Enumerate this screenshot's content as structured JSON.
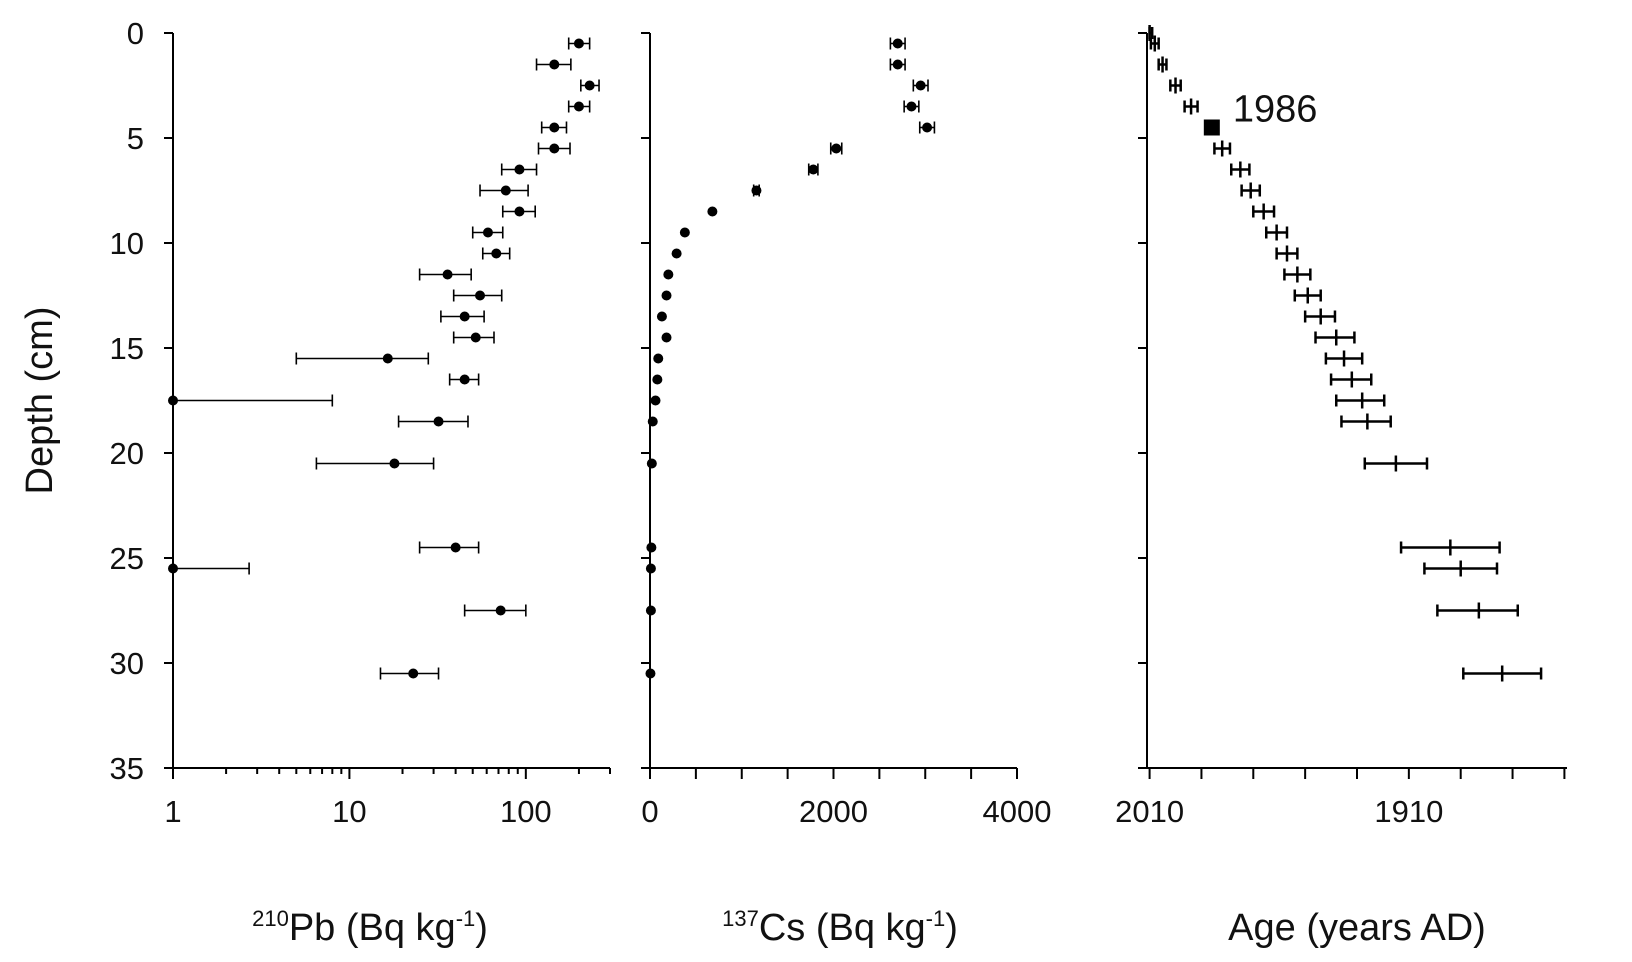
{
  "y_axis": {
    "title": "Depth (cm)",
    "ticks": [
      0,
      5,
      10,
      15,
      20,
      25,
      30,
      35
    ]
  },
  "panels": [
    {
      "id": "pb210",
      "title": {
        "sup": "210",
        "main": "Pb (Bq kg",
        "sup2": "-1",
        "end": ")"
      },
      "tick_labels": [
        "1",
        "10",
        "100"
      ]
    },
    {
      "id": "cs137",
      "title": {
        "sup": "137",
        "main": "Cs (Bq kg",
        "sup2": "-1",
        "end": ")"
      },
      "tick_labels": [
        "0",
        "2000",
        "4000"
      ]
    },
    {
      "id": "age",
      "title": {
        "main": "Age (years AD)"
      },
      "tick_labels": [
        "2010",
        "1910"
      ]
    }
  ],
  "chart_data": [
    {
      "type": "scatter",
      "panel": "pb210",
      "x_scale": "log",
      "xlim": [
        1,
        300
      ],
      "ylim": [
        0,
        35
      ],
      "y_inverted": true,
      "x_ticks": [
        1,
        10,
        100
      ],
      "error_bars": "horizontal",
      "points": [
        {
          "depth": 0.5,
          "x": 200,
          "lo": 175,
          "hi": 230
        },
        {
          "depth": 1.5,
          "x": 145,
          "lo": 115,
          "hi": 180
        },
        {
          "depth": 2.5,
          "x": 230,
          "lo": 205,
          "hi": 260
        },
        {
          "depth": 3.5,
          "x": 200,
          "lo": 175,
          "hi": 230
        },
        {
          "depth": 4.5,
          "x": 145,
          "lo": 123,
          "hi": 170
        },
        {
          "depth": 5.5,
          "x": 145,
          "lo": 118,
          "hi": 178
        },
        {
          "depth": 6.5,
          "x": 92,
          "lo": 73,
          "hi": 115
        },
        {
          "depth": 7.5,
          "x": 77,
          "lo": 55,
          "hi": 103
        },
        {
          "depth": 8.5,
          "x": 92,
          "lo": 74,
          "hi": 113
        },
        {
          "depth": 9.5,
          "x": 61,
          "lo": 50,
          "hi": 74
        },
        {
          "depth": 10.5,
          "x": 68,
          "lo": 57,
          "hi": 81
        },
        {
          "depth": 11.5,
          "x": 36,
          "lo": 25,
          "hi": 49
        },
        {
          "depth": 12.5,
          "x": 55,
          "lo": 39,
          "hi": 73
        },
        {
          "depth": 13.5,
          "x": 45,
          "lo": 33,
          "hi": 58
        },
        {
          "depth": 14.5,
          "x": 52,
          "lo": 39,
          "hi": 66
        },
        {
          "depth": 15.5,
          "x": 16.5,
          "lo": 5,
          "hi": 28
        },
        {
          "depth": 16.5,
          "x": 45,
          "lo": 37,
          "hi": 54
        },
        {
          "depth": 17.5,
          "x": 1,
          "lo": 1,
          "hi": 8
        },
        {
          "depth": 18.5,
          "x": 32,
          "lo": 19,
          "hi": 47
        },
        {
          "depth": 20.5,
          "x": 18,
          "lo": 6.5,
          "hi": 30
        },
        {
          "depth": 24.5,
          "x": 40,
          "lo": 25,
          "hi": 54
        },
        {
          "depth": 25.5,
          "x": 1,
          "lo": 1,
          "hi": 2.7
        },
        {
          "depth": 27.5,
          "x": 72,
          "lo": 45,
          "hi": 100
        },
        {
          "depth": 30.5,
          "x": 23,
          "lo": 15,
          "hi": 32
        }
      ]
    },
    {
      "type": "scatter",
      "panel": "cs137",
      "x_scale": "linear",
      "xlim": [
        0,
        4000
      ],
      "ylim": [
        0,
        35
      ],
      "y_inverted": true,
      "x_ticks": [
        0,
        2000,
        4000
      ],
      "error_bars": "horizontal",
      "points": [
        {
          "depth": 0.5,
          "x": 2700,
          "lo": 2620,
          "hi": 2780
        },
        {
          "depth": 1.5,
          "x": 2700,
          "lo": 2620,
          "hi": 2780
        },
        {
          "depth": 2.5,
          "x": 2950,
          "lo": 2870,
          "hi": 3030
        },
        {
          "depth": 3.5,
          "x": 2850,
          "lo": 2770,
          "hi": 2930
        },
        {
          "depth": 4.5,
          "x": 3020,
          "lo": 2940,
          "hi": 3100
        },
        {
          "depth": 5.5,
          "x": 2030,
          "lo": 1970,
          "hi": 2090
        },
        {
          "depth": 6.5,
          "x": 1780,
          "lo": 1730,
          "hi": 1830
        },
        {
          "depth": 7.5,
          "x": 1160,
          "lo": 1130,
          "hi": 1190
        },
        {
          "depth": 8.5,
          "x": 680
        },
        {
          "depth": 9.5,
          "x": 380
        },
        {
          "depth": 10.5,
          "x": 290
        },
        {
          "depth": 11.5,
          "x": 200
        },
        {
          "depth": 12.5,
          "x": 180
        },
        {
          "depth": 13.5,
          "x": 130
        },
        {
          "depth": 14.5,
          "x": 180
        },
        {
          "depth": 15.5,
          "x": 90
        },
        {
          "depth": 16.5,
          "x": 80
        },
        {
          "depth": 17.5,
          "x": 60
        },
        {
          "depth": 18.5,
          "x": 30
        },
        {
          "depth": 20.5,
          "x": 20
        },
        {
          "depth": 24.5,
          "x": 15
        },
        {
          "depth": 25.5,
          "x": 10
        },
        {
          "depth": 27.5,
          "x": 10
        },
        {
          "depth": 30.5,
          "x": 5
        }
      ]
    },
    {
      "type": "scatter",
      "panel": "age",
      "x_scale": "linear",
      "x_reversed": true,
      "xlim": [
        2011,
        1849
      ],
      "ylim": [
        0,
        35
      ],
      "y_inverted": true,
      "x_ticks": [
        2010,
        1910
      ],
      "error_bars": "horizontal",
      "points": [
        {
          "depth": 0,
          "x": 2010,
          "lo": 2009,
          "hi": 2010
        },
        {
          "depth": 0.5,
          "x": 2008,
          "lo": 2006.5,
          "hi": 2009.5
        },
        {
          "depth": 1.5,
          "x": 2005,
          "lo": 2003.5,
          "hi": 2006.5
        },
        {
          "depth": 2.5,
          "x": 2000,
          "lo": 1998,
          "hi": 2002
        },
        {
          "depth": 3.5,
          "x": 1994,
          "lo": 1991.5,
          "hi": 1996.5
        },
        {
          "depth": 5.5,
          "x": 1982,
          "lo": 1979,
          "hi": 1985
        },
        {
          "depth": 6.5,
          "x": 1975,
          "lo": 1971.5,
          "hi": 1978.5
        },
        {
          "depth": 7.5,
          "x": 1971,
          "lo": 1967.5,
          "hi": 1974.5
        },
        {
          "depth": 8.5,
          "x": 1966,
          "lo": 1962,
          "hi": 1970
        },
        {
          "depth": 9.5,
          "x": 1961,
          "lo": 1957,
          "hi": 1965
        },
        {
          "depth": 10.5,
          "x": 1957,
          "lo": 1953,
          "hi": 1961
        },
        {
          "depth": 11.5,
          "x": 1953,
          "lo": 1948,
          "hi": 1958
        },
        {
          "depth": 12.5,
          "x": 1949,
          "lo": 1944,
          "hi": 1954
        },
        {
          "depth": 13.5,
          "x": 1944,
          "lo": 1938.5,
          "hi": 1950
        },
        {
          "depth": 14.5,
          "x": 1938,
          "lo": 1931,
          "hi": 1946
        },
        {
          "depth": 15.5,
          "x": 1935,
          "lo": 1928,
          "hi": 1942
        },
        {
          "depth": 16.5,
          "x": 1932,
          "lo": 1924.5,
          "hi": 1940
        },
        {
          "depth": 17.5,
          "x": 1928,
          "lo": 1919.5,
          "hi": 1938
        },
        {
          "depth": 18.5,
          "x": 1926,
          "lo": 1917,
          "hi": 1936
        },
        {
          "depth": 20.5,
          "x": 1915,
          "lo": 1903,
          "hi": 1927
        },
        {
          "depth": 24.5,
          "x": 1894,
          "lo": 1875,
          "hi": 1913
        },
        {
          "depth": 25.5,
          "x": 1890,
          "lo": 1876,
          "hi": 1904
        },
        {
          "depth": 27.5,
          "x": 1883,
          "lo": 1868,
          "hi": 1899
        },
        {
          "depth": 30.5,
          "x": 1874,
          "lo": 1859,
          "hi": 1889
        }
      ],
      "marker": {
        "depth": 4.5,
        "x": 1986,
        "label": "1986",
        "shape": "square"
      }
    }
  ]
}
